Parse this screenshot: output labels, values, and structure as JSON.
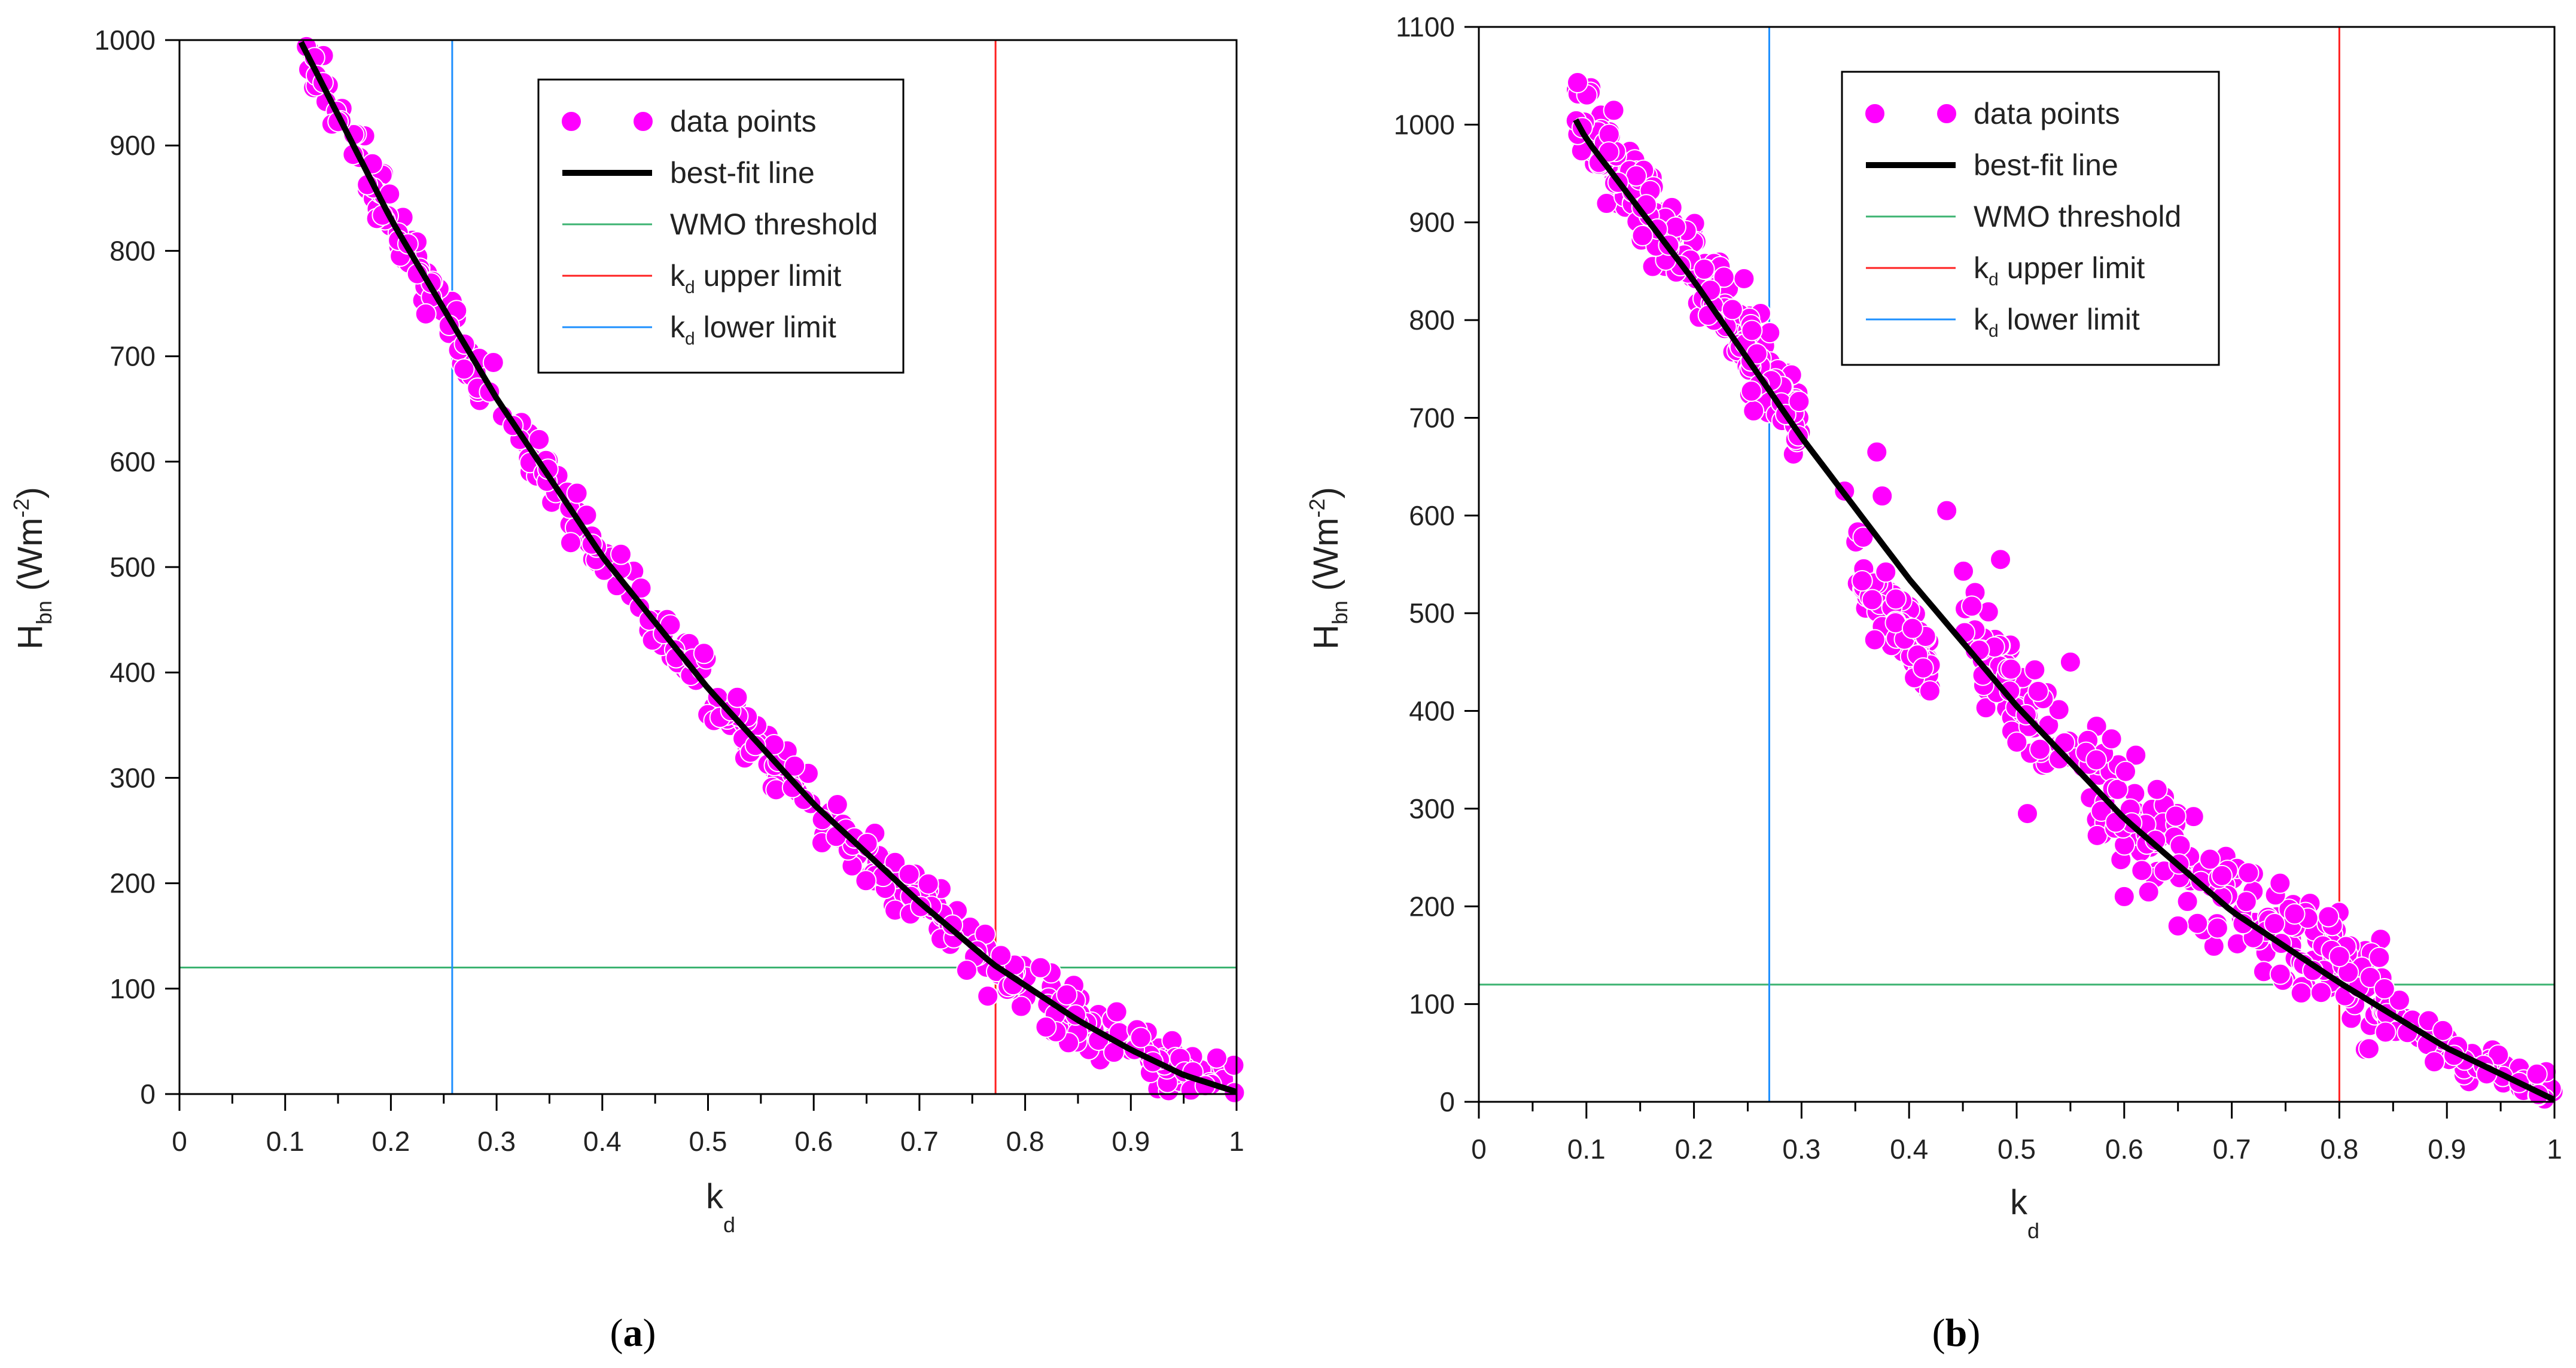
{
  "chart_data": [
    {
      "type": "scatter",
      "caption": {
        "open": "(",
        "letter": "a",
        "close": ")"
      },
      "xlabel": {
        "main": "k",
        "sub": "d"
      },
      "ylabel": {
        "main": "H",
        "sub": "bn",
        "units_pre": " (Wm",
        "units_sup": "-2",
        "units_post": ")"
      },
      "xlim": [
        0,
        1
      ],
      "ylim": [
        0,
        1000
      ],
      "xticks": [
        0,
        0.1,
        0.2,
        0.3,
        0.4,
        0.5,
        0.6,
        0.7,
        0.8,
        0.9,
        1
      ],
      "xtick_labels": [
        "0",
        "0.1",
        "0.2",
        "0.3",
        "0.4",
        "0.5",
        "0.6",
        "0.7",
        "0.8",
        "0.9",
        "1"
      ],
      "yticks": [
        0,
        100,
        200,
        300,
        400,
        500,
        600,
        700,
        800,
        900,
        1000
      ],
      "ytick_labels": [
        "0",
        "100",
        "200",
        "300",
        "400",
        "500",
        "600",
        "700",
        "800",
        "900",
        "1000"
      ],
      "legend": {
        "position": "top-center",
        "entries": [
          {
            "kind": "marker",
            "label": "data points"
          },
          {
            "kind": "line",
            "label": "best-fit line"
          },
          {
            "kind": "line",
            "label": "WMO threshold"
          },
          {
            "kind": "line",
            "label_main": "k",
            "label_sub": "d",
            "label_rest": " upper limit"
          },
          {
            "kind": "line",
            "label_main": "k",
            "label_sub": "d",
            "label_rest": " lower limit"
          }
        ]
      },
      "colors": {
        "points": "#ff00ff",
        "fit": "#000000",
        "wmo": "#3cb371",
        "upper": "#ff2020",
        "lower": "#1e90ff"
      },
      "fit_curve": {
        "x": [
          0.115,
          0.2,
          0.3,
          0.4,
          0.5,
          0.6,
          0.7,
          0.77,
          0.85,
          0.9,
          0.95,
          1.0
        ],
        "y": [
          998,
          830,
          660,
          510,
          385,
          275,
          182,
          123,
          70,
          42,
          18,
          2
        ]
      },
      "wmo_threshold": 120,
      "kd_upper": 0.772,
      "kd_lower": 0.258,
      "points_spec": {
        "clusters": [
          {
            "x0": 0.11,
            "x1": 1.0,
            "n": 420,
            "spread": 28
          }
        ]
      }
    },
    {
      "type": "scatter",
      "caption": {
        "open": "(",
        "letter": "b",
        "close": ")"
      },
      "xlabel": {
        "main": "k",
        "sub": "d"
      },
      "ylabel": {
        "main": "H",
        "sub": "bn",
        "units_pre": " (Wm",
        "units_sup": "-2",
        "units_post": ")"
      },
      "xlim": [
        0,
        1
      ],
      "ylim": [
        0,
        1100
      ],
      "xticks": [
        0,
        0.1,
        0.2,
        0.3,
        0.4,
        0.5,
        0.6,
        0.7,
        0.8,
        0.9,
        1
      ],
      "xtick_labels": [
        "0",
        "0.1",
        "0.2",
        "0.3",
        "0.4",
        "0.5",
        "0.6",
        "0.7",
        "0.8",
        "0.9",
        "1"
      ],
      "yticks": [
        0,
        100,
        200,
        300,
        400,
        500,
        600,
        700,
        800,
        900,
        1000,
        1100
      ],
      "ytick_labels": [
        "0",
        "100",
        "200",
        "300",
        "400",
        "500",
        "600",
        "700",
        "800",
        "900",
        "1000",
        "1100"
      ],
      "legend": {
        "position": "top-center",
        "entries": [
          {
            "kind": "marker",
            "label": "data points"
          },
          {
            "kind": "line",
            "label": "best-fit line"
          },
          {
            "kind": "line",
            "label": "WMO threshold"
          },
          {
            "kind": "line",
            "label_main": "k",
            "label_sub": "d",
            "label_rest": " upper limit"
          },
          {
            "kind": "line",
            "label_main": "k",
            "label_sub": "d",
            "label_rest": " lower limit"
          }
        ]
      },
      "colors": {
        "points": "#ff00ff",
        "fit": "#000000",
        "wmo": "#3cb371",
        "upper": "#ff2020",
        "lower": "#1e90ff"
      },
      "fit_curve": {
        "x": [
          0.09,
          0.1,
          0.2,
          0.3,
          0.4,
          0.5,
          0.6,
          0.7,
          0.8,
          0.9,
          1.0
        ],
        "y": [
          1005,
          985,
          840,
          680,
          535,
          405,
          290,
          195,
          122,
          55,
          2
        ]
      },
      "wmo_threshold": 120,
      "kd_upper": 0.8,
      "kd_lower": 0.27,
      "points_spec": {
        "clusters": [
          {
            "x0": 0.09,
            "x1": 0.3,
            "n": 260,
            "offset": 10,
            "spread": 45
          },
          {
            "x0": 0.35,
            "x1": 0.42,
            "n": 90,
            "offset": -60,
            "spread": 40
          },
          {
            "x0": 0.45,
            "x1": 0.84,
            "n": 260,
            "offset": 10,
            "spread": 55
          },
          {
            "x0": 0.84,
            "x1": 1.0,
            "n": 80,
            "offset": 0,
            "spread": 18
          }
        ],
        "extras": [
          [
            0.34,
            625
          ],
          [
            0.37,
            665
          ],
          [
            0.375,
            620
          ],
          [
            0.435,
            605
          ],
          [
            0.485,
            555
          ],
          [
            0.52,
            420
          ],
          [
            0.55,
            450
          ],
          [
            0.6,
            210
          ],
          [
            0.65,
            180
          ],
          [
            0.51,
            295
          ]
        ]
      }
    }
  ]
}
